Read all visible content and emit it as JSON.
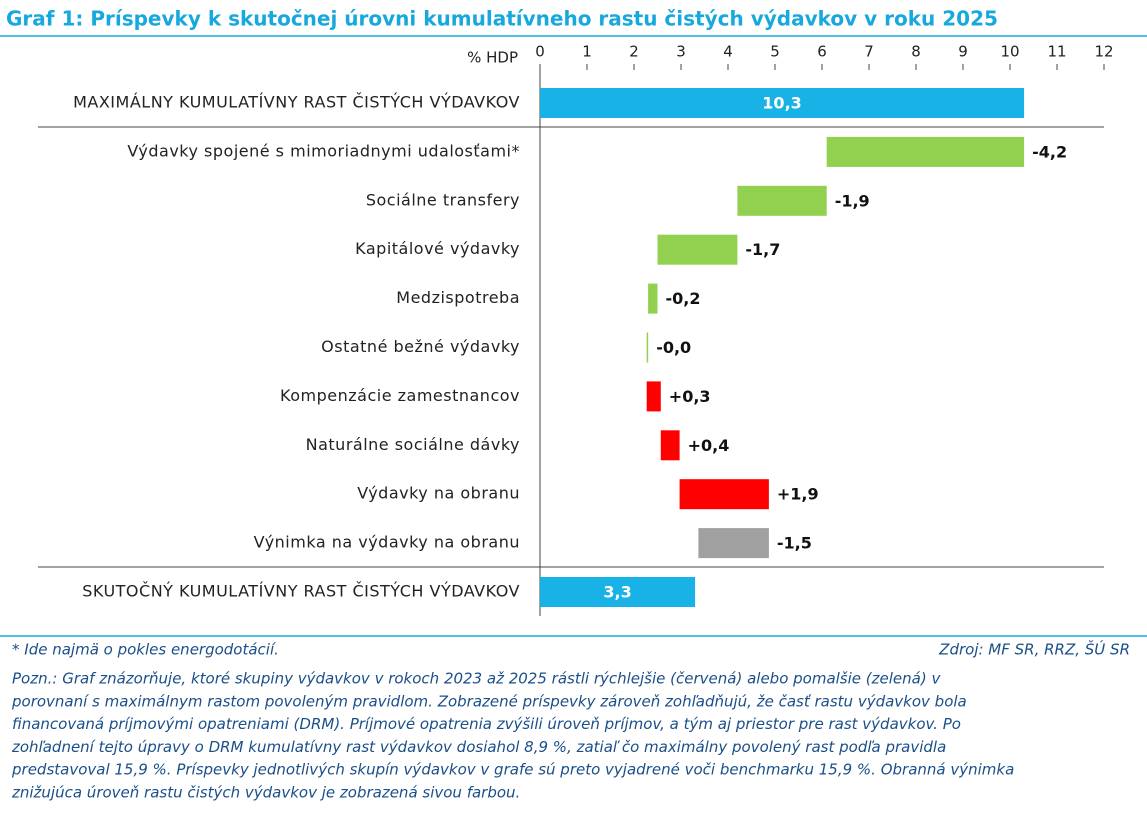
{
  "chart_data": {
    "type": "waterfall",
    "title": "Graf 1: Príspevky k skutočnej úrovni kumulatívneho rastu čistých výdavkov v roku 2025",
    "x_label": "% HDP",
    "categories": [
      "MAXIMÁLNY KUMULATÍVNY RAST ČISTÝCH VÝDAVKOV",
      "Výdavky spojené s mimoriadnymi udalosťami*",
      "Sociálne transfery",
      "Kapitálové výdavky",
      "Medzispotreba",
      "Ostatné bežné výdavky",
      "Kompenzácie zamestnancov",
      "Naturálne sociálne dávky",
      "Výdavky na obranu",
      "Výnimka na výdavky na obranu",
      "SKUTOČNÝ KUMULATÍVNY RAST ČISTÝCH VÝDAVKOV"
    ],
    "measure": [
      "total",
      "relative",
      "relative",
      "relative",
      "relative",
      "relative",
      "relative",
      "relative",
      "relative",
      "relative",
      "total"
    ],
    "values": [
      10.3,
      -4.2,
      -1.9,
      -1.7,
      -0.2,
      -0.03,
      0.3,
      0.4,
      1.9,
      -1.5,
      3.3
    ],
    "value_labels": [
      "10,3",
      "-4,2",
      "-1,9",
      "-1,7",
      "-0,2",
      "-0,0",
      "+0,3",
      "+0,4",
      "+1,9",
      "-1,5",
      "3,3"
    ],
    "colors": [
      "#19b2e6",
      "#92d050",
      "#92d050",
      "#92d050",
      "#92d050",
      "#92d050",
      "#ff0000",
      "#ff0000",
      "#ff0000",
      "#a0a0a0",
      "#19b2e6"
    ],
    "xlim": [
      0,
      12
    ],
    "xticks": [
      0,
      1,
      2,
      3,
      4,
      5,
      6,
      7,
      8,
      9,
      10,
      11,
      12
    ],
    "footnote": "* Ide najmä o pokles energodotácií.",
    "source": "Zdroj: MF SR, RRZ, ŠÚ SR",
    "note": [
      "Pozn.: Graf znázorňuje, ktoré skupiny výdavkov v rokoch 2023 až 2025 rástli rýchlejšie (červená) alebo pomalšie (zelená) v",
      "porovnaní s maximálnym rastom povoleným pravidlom. Zobrazené príspevky zároveň zohľadňujú, že časť rastu výdavkov bola",
      "financovaná príjmovými opatreniami (DRM). Príjmové opatrenia zvýšili úroveň príjmov, a tým aj priestor pre rast výdavkov. Po",
      "zohľadnení tejto úpravy o DRM kumulatívny rast výdavkov dosiahol 8,9 %, zatiaľ čo maximálny povolený rast podľa pravidla",
      "predstavoval 15,9 %. Príspevky jednotlivých skupín výdavkov v grafe sú preto vyjadrené voči benchmarku 15,9 %. Obranná výnimka",
      "znižujúca úroveň rastu čistých výdavkov je zobrazená sivou farbou."
    ]
  }
}
